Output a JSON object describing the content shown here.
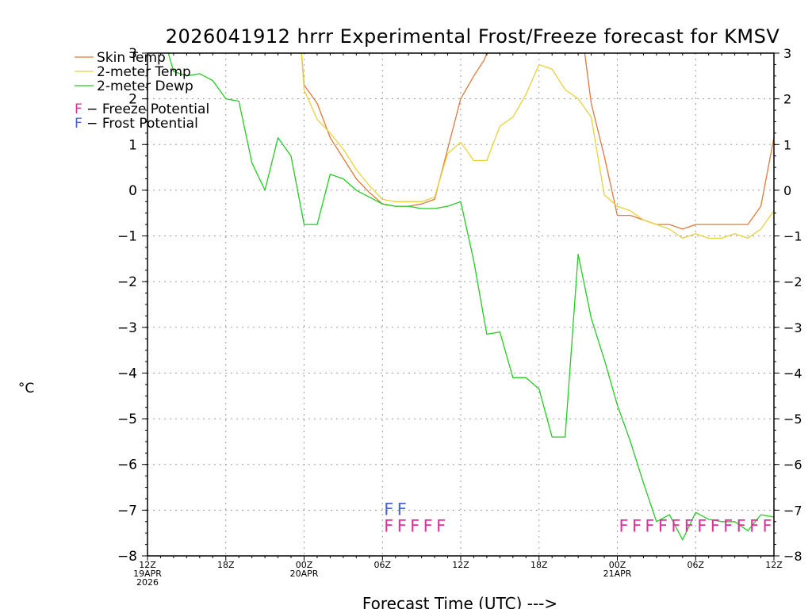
{
  "chart_data": {
    "type": "line",
    "title": "2026041912 hrrr Experimental Frost/Freeze forecast for KMSV",
    "xlabel": "Forecast Time (UTC) --->",
    "ylabel": "°C",
    "xlim": [
      0,
      48
    ],
    "ylim": [
      -8,
      3
    ],
    "yticks": [
      -8,
      -7,
      -6,
      -5,
      -4,
      -3,
      -2,
      -1,
      0,
      1,
      2,
      3
    ],
    "ytick_labels": [
      "−8",
      "−7",
      "−6",
      "−5",
      "−4",
      "−3",
      "−2",
      "−1",
      "0",
      "1",
      "2",
      "3"
    ],
    "grid": true,
    "xticks": [
      {
        "x": 0,
        "lines": [
          "12Z",
          "19APR",
          "2026"
        ]
      },
      {
        "x": 6,
        "lines": [
          "18Z"
        ]
      },
      {
        "x": 12,
        "lines": [
          "00Z",
          "20APR"
        ]
      },
      {
        "x": 18,
        "lines": [
          "06Z"
        ]
      },
      {
        "x": 24,
        "lines": [
          "12Z"
        ]
      },
      {
        "x": 30,
        "lines": [
          "18Z"
        ]
      },
      {
        "x": 36,
        "lines": [
          "00Z",
          "21APR"
        ]
      },
      {
        "x": 42,
        "lines": [
          "06Z"
        ]
      },
      {
        "x": 48,
        "lines": [
          "12Z"
        ]
      }
    ],
    "series": [
      {
        "name": "Skin Temp",
        "color": "#e07a3c",
        "points": [
          [
            11.8,
            3
          ],
          [
            12,
            2.3
          ],
          [
            13,
            1.9
          ],
          [
            14,
            1.15
          ],
          [
            15,
            0.7
          ],
          [
            16,
            0.25
          ],
          [
            17,
            -0.05
          ],
          [
            18,
            -0.3
          ],
          [
            19,
            -0.35
          ],
          [
            20,
            -0.35
          ],
          [
            21,
            -0.3
          ],
          [
            22,
            -0.2
          ],
          [
            23,
            0.9
          ],
          [
            24,
            2.0
          ],
          [
            25,
            2.5
          ],
          [
            25.8,
            2.85
          ],
          [
            26,
            3
          ],
          null,
          [
            33.5,
            3
          ],
          [
            34,
            1.9
          ],
          [
            35,
            0.75
          ],
          [
            36,
            -0.55
          ],
          [
            37,
            -0.55
          ],
          [
            38,
            -0.65
          ],
          [
            39,
            -0.75
          ],
          [
            40,
            -0.75
          ],
          [
            41,
            -0.85
          ],
          [
            42,
            -0.75
          ],
          [
            43,
            -0.75
          ],
          [
            44,
            -0.75
          ],
          [
            45,
            -0.75
          ],
          [
            46,
            -0.75
          ],
          [
            47,
            -0.35
          ],
          [
            48,
            1.15
          ]
        ]
      },
      {
        "name": "2-meter Temp",
        "color": "#e8d23a",
        "points": [
          [
            11.8,
            3
          ],
          [
            12,
            2.2
          ],
          [
            13,
            1.55
          ],
          [
            14,
            1.25
          ],
          [
            15,
            0.9
          ],
          [
            16,
            0.45
          ],
          [
            17,
            0.1
          ],
          [
            18,
            -0.2
          ],
          [
            19,
            -0.25
          ],
          [
            20,
            -0.25
          ],
          [
            21,
            -0.25
          ],
          [
            22,
            -0.15
          ],
          [
            23,
            0.8
          ],
          [
            24,
            1.05
          ],
          [
            25,
            0.65
          ],
          [
            26,
            0.65
          ],
          [
            27,
            1.4
          ],
          [
            28,
            1.6
          ],
          [
            29,
            2.1
          ],
          [
            30,
            2.75
          ],
          [
            31,
            2.65
          ],
          [
            32,
            2.2
          ],
          [
            33,
            2.0
          ],
          [
            34,
            1.6
          ],
          [
            35,
            -0.1
          ],
          [
            36,
            -0.35
          ],
          [
            37,
            -0.45
          ],
          [
            38,
            -0.65
          ],
          [
            39,
            -0.75
          ],
          [
            40,
            -0.85
          ],
          [
            41,
            -1.05
          ],
          [
            42,
            -0.95
          ],
          [
            43,
            -1.05
          ],
          [
            44,
            -1.05
          ],
          [
            45,
            -0.95
          ],
          [
            46,
            -1.05
          ],
          [
            47,
            -0.85
          ],
          [
            48,
            -0.45
          ]
        ]
      },
      {
        "name": "2-meter Dewp",
        "color": "#22cc22",
        "points": [
          [
            1.6,
            3
          ],
          [
            2,
            2.6
          ],
          [
            3,
            2.5
          ],
          [
            4,
            2.55
          ],
          [
            5,
            2.4
          ],
          [
            6,
            2.0
          ],
          [
            7,
            1.95
          ],
          [
            8,
            0.6
          ],
          [
            9,
            0.0
          ],
          [
            10,
            1.15
          ],
          [
            11,
            0.75
          ],
          [
            12,
            -0.75
          ],
          [
            13,
            -0.75
          ],
          [
            14,
            0.35
          ],
          [
            15,
            0.25
          ],
          [
            16,
            0.0
          ],
          [
            17,
            -0.15
          ],
          [
            18,
            -0.3
          ],
          [
            19,
            -0.35
          ],
          [
            20,
            -0.35
          ],
          [
            21,
            -0.4
          ],
          [
            22,
            -0.4
          ],
          [
            23,
            -0.35
          ],
          [
            24,
            -0.25
          ],
          [
            25,
            -1.55
          ],
          [
            26,
            -3.15
          ],
          [
            27,
            -3.1
          ],
          [
            28,
            -4.1
          ],
          [
            29,
            -4.1
          ],
          [
            30,
            -4.35
          ],
          [
            31,
            -5.4
          ],
          [
            32,
            -5.4
          ],
          [
            33,
            -1.4
          ],
          [
            34,
            -2.8
          ],
          [
            35,
            -3.7
          ],
          [
            36,
            -4.7
          ],
          [
            37,
            -5.5
          ],
          [
            38,
            -6.4
          ],
          [
            39,
            -7.25
          ],
          [
            40,
            -7.1
          ],
          [
            41,
            -7.65
          ],
          [
            42,
            -7.05
          ],
          [
            43,
            -7.2
          ],
          [
            44,
            -7.25
          ],
          [
            45,
            -7.25
          ],
          [
            46,
            -7.45
          ],
          [
            47,
            -7.1
          ],
          [
            48,
            -7.15
          ]
        ]
      }
    ],
    "markers": [
      {
        "name": "Frost Potential",
        "color": "#4b63d8",
        "letter": "F",
        "row": "frost",
        "xs": [
          18,
          19
        ]
      },
      {
        "name": "Freeze Potential",
        "color": "#e0309c",
        "letter": "F",
        "row": "freeze",
        "xs": [
          18,
          19,
          20,
          21,
          22,
          36,
          37,
          38,
          39,
          40,
          41,
          42,
          43,
          44,
          45,
          46,
          47
        ]
      }
    ],
    "legend": {
      "placement": "top-left",
      "line_items": [
        "Skin Temp",
        "2-meter Temp",
        "2-meter Dewp"
      ],
      "marker_items": [
        {
          "letter": "F",
          "text": " − Freeze Potential",
          "color": "#e0309c"
        },
        {
          "letter": "F",
          "text": " − Frost Potential",
          "color": "#4b63d8"
        }
      ]
    }
  }
}
